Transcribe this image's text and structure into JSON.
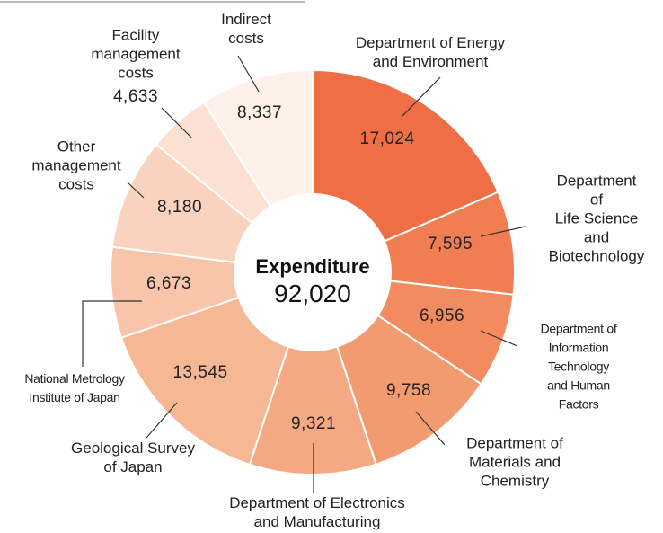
{
  "chart_data": {
    "type": "donut",
    "center_title": "Expenditure",
    "total": 92020,
    "total_label": "92,020",
    "categories": [
      "Department of Energy\nand Environment",
      "Department of\nLife Science and\nBiotechnology",
      "Department of\nInformation Technology\nand Human Factors",
      "Department of\nMaterials and Chemistry",
      "Department of Electronics\nand Manufacturing",
      "Geological Survey\nof Japan",
      "National Metrology\nInstitute of Japan",
      "Other\nmanagement\ncosts",
      "Facility\nmanagement\ncosts",
      "Indirect\ncosts"
    ],
    "values": [
      17024,
      7595,
      6956,
      9758,
      9321,
      13545,
      6673,
      8180,
      4633,
      8337
    ],
    "value_labels": [
      "17,024",
      "7,595",
      "6,956",
      "9,758",
      "9,321",
      "13,545",
      "6,673",
      "8,180",
      "4,633",
      "8,337"
    ],
    "colors": [
      "#ef6e46",
      "#f07e52",
      "#f28c60",
      "#f39b70",
      "#f5a982",
      "#f6b795",
      "#f8c5aa",
      "#fad3be",
      "#fce1d3",
      "#fdf1ea"
    ]
  }
}
